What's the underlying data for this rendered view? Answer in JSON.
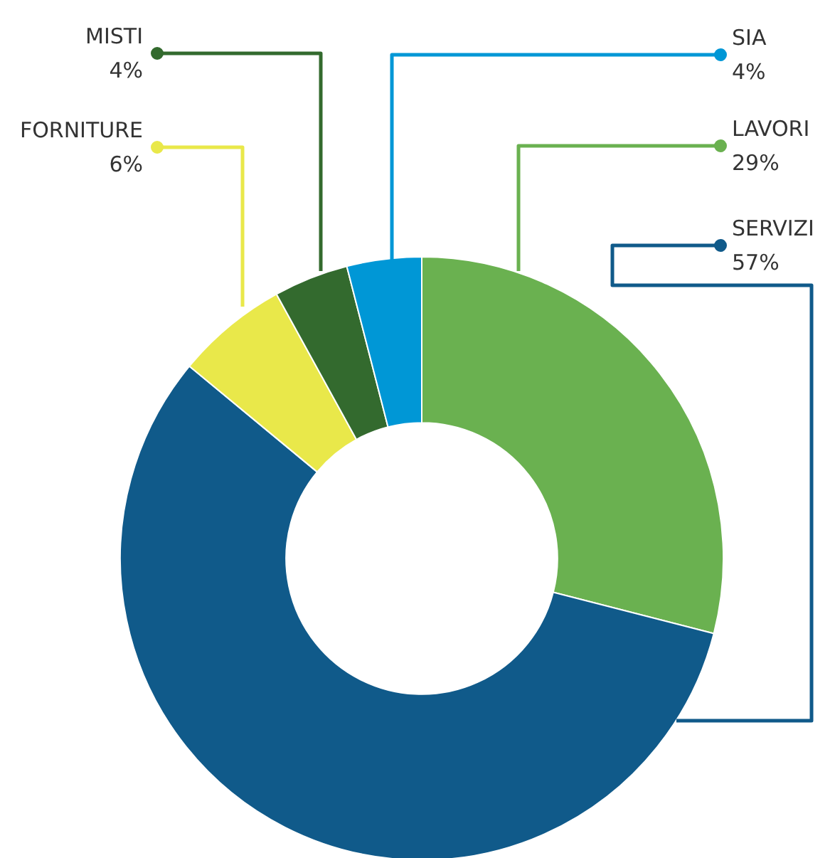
{
  "chart_data": {
    "type": "donut",
    "categories": [
      "LAVORI",
      "SERVIZI",
      "FORNITURE",
      "MISTI",
      "SIA"
    ],
    "values": [
      29,
      57,
      6,
      4,
      4
    ],
    "value_labels": [
      "29%",
      "57%",
      "6%",
      "4%",
      "4%"
    ],
    "colors": [
      "#6ab150",
      "#105a8a",
      "#e9e84a",
      "#336a2e",
      "#0097d6"
    ]
  }
}
